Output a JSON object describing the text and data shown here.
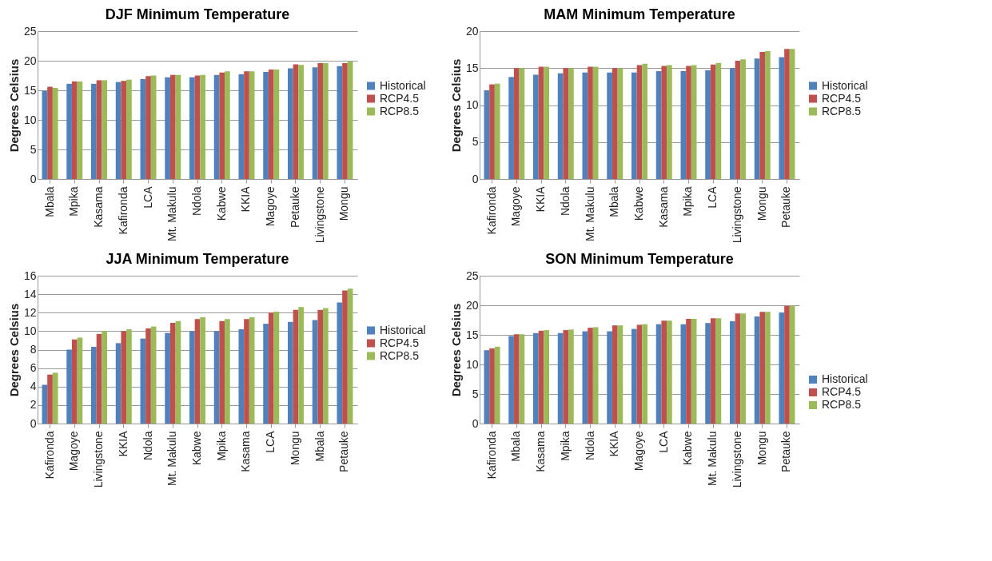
{
  "chart_data": [
    {
      "type": "bar",
      "title": "DJF Minimum Temperature",
      "ylabel": "Degrees Celsius",
      "categories": [
        "Mbala",
        "Mpika",
        "Kasama",
        "Kafironda",
        "LCA",
        "Mt. Makulu",
        "Ndola",
        "Kabwe",
        "KKIA",
        "Magoye",
        "Petauke",
        "Livingstone",
        "Mongu"
      ],
      "series": [
        {
          "name": "Historical",
          "color": "#4f81bd",
          "values": [
            14.9,
            16.1,
            16.1,
            16.4,
            16.9,
            17.2,
            17.2,
            17.6,
            17.7,
            18.1,
            18.7,
            18.9,
            19.1
          ]
        },
        {
          "name": "RCP4.5",
          "color": "#c0504d",
          "values": [
            15.6,
            16.5,
            16.7,
            16.6,
            17.4,
            17.6,
            17.5,
            18.0,
            18.2,
            18.5,
            19.4,
            19.6,
            19.6
          ]
        },
        {
          "name": "RCP8.5",
          "color": "#9bbb59",
          "values": [
            15.4,
            16.5,
            16.7,
            16.8,
            17.5,
            17.6,
            17.6,
            18.2,
            18.2,
            18.5,
            19.3,
            19.6,
            19.9
          ]
        }
      ],
      "ylim": [
        0,
        25
      ],
      "yticks": [
        0,
        5,
        10,
        15,
        20,
        25
      ],
      "grid": "y",
      "legend": "right"
    },
    {
      "type": "bar",
      "title": "MAM Minimum Temperature",
      "ylabel": "Degrees Celsius",
      "categories": [
        "Kafironda",
        "Magoye",
        "KKIA",
        "Ndola",
        "Mt. Makulu",
        "Mbala",
        "Kabwe",
        "Kasama",
        "Mpika",
        "LCA",
        "Livingstone",
        "Mongu",
        "Petauke"
      ],
      "series": [
        {
          "name": "Historical",
          "color": "#4f81bd",
          "values": [
            12.0,
            13.8,
            14.1,
            14.3,
            14.4,
            14.4,
            14.4,
            14.6,
            14.6,
            14.7,
            15.0,
            16.3,
            16.5
          ]
        },
        {
          "name": "RCP4.5",
          "color": "#c0504d",
          "values": [
            12.8,
            15.0,
            15.2,
            15.0,
            15.2,
            15.0,
            15.4,
            15.3,
            15.3,
            15.5,
            16.0,
            17.2,
            17.6
          ]
        },
        {
          "name": "RCP8.5",
          "color": "#9bbb59",
          "values": [
            12.9,
            15.0,
            15.2,
            15.0,
            15.2,
            15.0,
            15.6,
            15.4,
            15.4,
            15.7,
            16.2,
            17.3,
            17.6
          ]
        }
      ],
      "ylim": [
        0,
        20
      ],
      "yticks": [
        0,
        5,
        10,
        15,
        20
      ],
      "grid": "y",
      "legend": "right"
    },
    {
      "type": "bar",
      "title": "JJA Minimum Temperature",
      "ylabel": "Degrees Celsius",
      "categories": [
        "Kafironda",
        "Magoye",
        "Livingstone",
        "KKIA",
        "Ndola",
        "Mt. Makulu",
        "Kabwe",
        "Mpika",
        "Kasama",
        "LCA",
        "Mongu",
        "Mbala",
        "Petauke"
      ],
      "series": [
        {
          "name": "Historical",
          "color": "#4f81bd",
          "values": [
            4.2,
            8.0,
            8.3,
            8.7,
            9.2,
            9.8,
            10.0,
            10.0,
            10.2,
            10.8,
            11.0,
            11.2,
            13.1
          ]
        },
        {
          "name": "RCP4.5",
          "color": "#c0504d",
          "values": [
            5.3,
            9.1,
            9.7,
            10.0,
            10.3,
            10.9,
            11.3,
            11.1,
            11.3,
            12.0,
            12.3,
            12.3,
            14.4
          ]
        },
        {
          "name": "RCP8.5",
          "color": "#9bbb59",
          "values": [
            5.5,
            9.3,
            10.0,
            10.2,
            10.5,
            11.1,
            11.5,
            11.3,
            11.5,
            12.1,
            12.6,
            12.5,
            14.6
          ]
        }
      ],
      "ylim": [
        0,
        16
      ],
      "yticks": [
        0,
        2,
        4,
        6,
        8,
        10,
        12,
        14,
        16
      ],
      "grid": "y",
      "legend": "right"
    },
    {
      "type": "bar",
      "title": "SON Minimum Temperature",
      "ylabel": "Degrees Celsius",
      "categories": [
        "Kafironda",
        "Mbala",
        "Kasama",
        "Mpika",
        "Ndola",
        "KKIA",
        "Magoye",
        "LCA",
        "Kabwe",
        "Mt. Makulu",
        "Livingstone",
        "Mongu",
        "Petauke"
      ],
      "series": [
        {
          "name": "Historical",
          "color": "#4f81bd",
          "values": [
            12.4,
            14.8,
            15.3,
            15.3,
            15.6,
            15.6,
            16.0,
            16.8,
            16.8,
            17.0,
            17.3,
            18.1,
            18.8
          ]
        },
        {
          "name": "RCP4.5",
          "color": "#c0504d",
          "values": [
            12.7,
            15.1,
            15.7,
            15.8,
            16.2,
            16.6,
            16.7,
            17.4,
            17.7,
            17.8,
            18.6,
            18.9,
            19.9
          ]
        },
        {
          "name": "RCP8.5",
          "color": "#9bbb59",
          "values": [
            13.0,
            15.1,
            15.8,
            15.9,
            16.3,
            16.6,
            16.8,
            17.4,
            17.7,
            17.8,
            18.6,
            18.9,
            19.9
          ]
        }
      ],
      "ylim": [
        0,
        25
      ],
      "yticks": [
        0,
        5,
        10,
        15,
        20,
        25
      ],
      "grid": "y",
      "legend": "bottom right"
    }
  ]
}
